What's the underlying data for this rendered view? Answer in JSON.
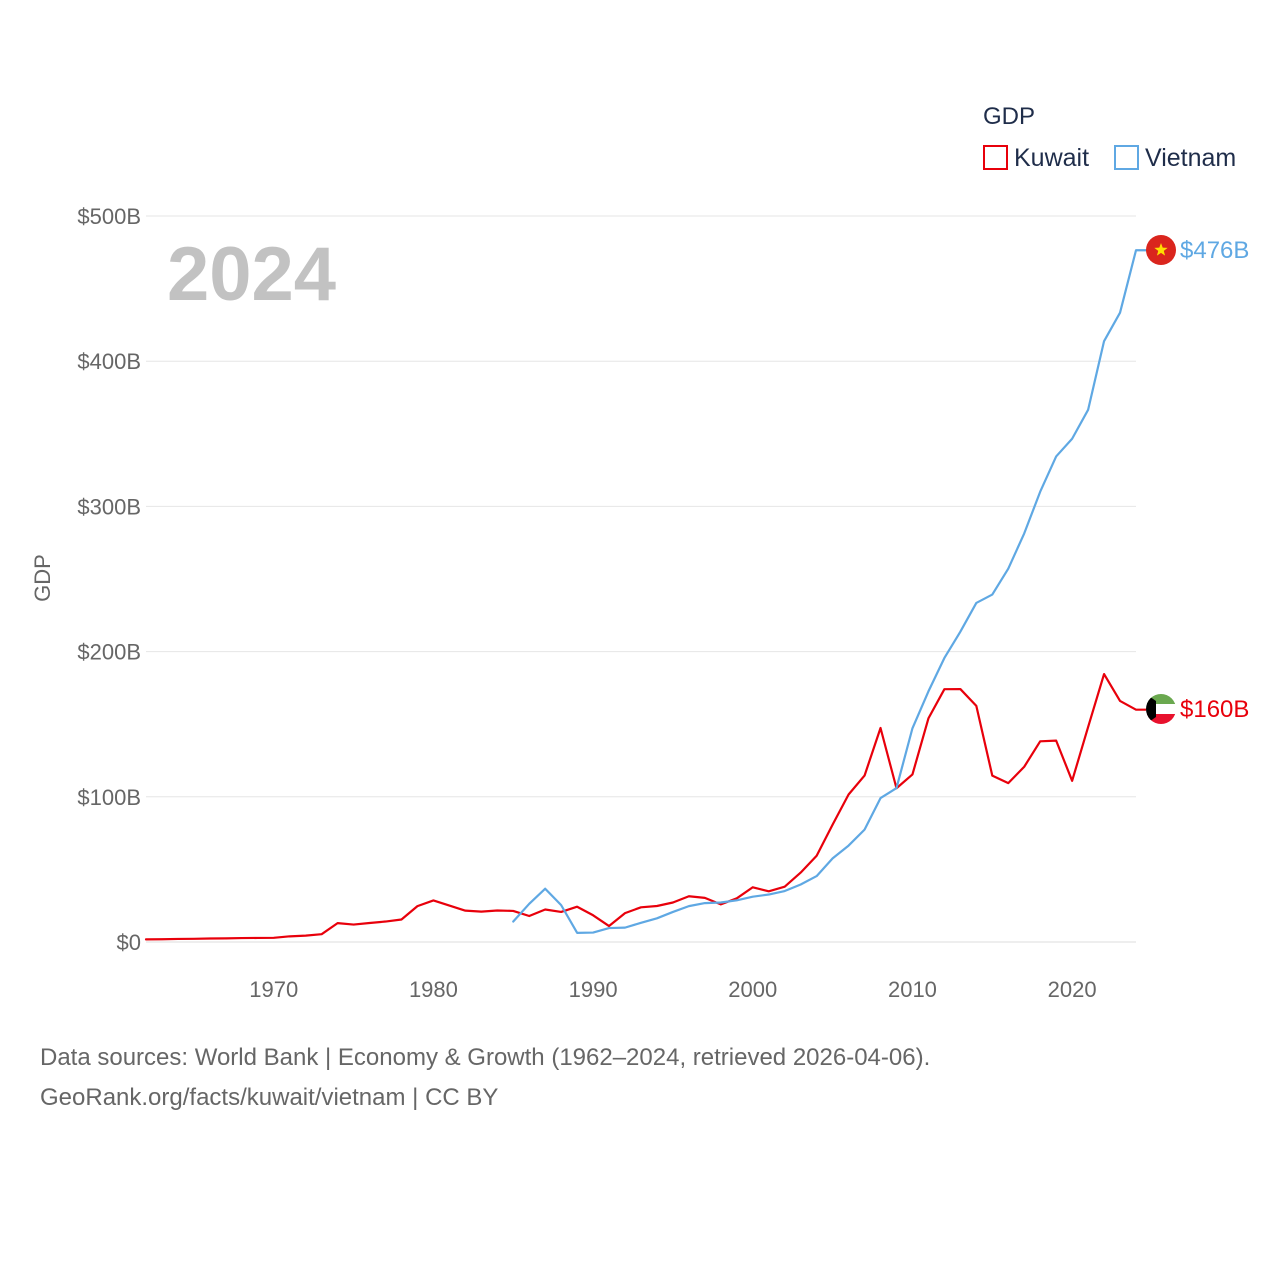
{
  "chart_data": {
    "type": "line",
    "title": "GDP",
    "year_label": "2024",
    "ylabel": "GDP",
    "xlabel": "",
    "xlim": [
      1962,
      2024
    ],
    "ylim": [
      0,
      500
    ],
    "x_ticks": [
      1970,
      1980,
      1990,
      2000,
      2010,
      2020
    ],
    "x_tick_labels": [
      "1970",
      "1980",
      "1990",
      "2000",
      "2010",
      "2020"
    ],
    "y_ticks": [
      0,
      100,
      200,
      300,
      400,
      500
    ],
    "y_tick_labels": [
      "$0",
      "$100B",
      "$200B",
      "$300B",
      "$400B",
      "$500B"
    ],
    "grid": true,
    "legend_position": "top-right",
    "legend_title": "GDP",
    "units": "billion USD",
    "series": [
      {
        "name": "Kuwait",
        "color": "#e8000b",
        "end_label": "$160B",
        "flag": "kuwait-flag",
        "x": [
          1962,
          1963,
          1964,
          1965,
          1966,
          1967,
          1968,
          1969,
          1970,
          1971,
          1972,
          1973,
          1974,
          1975,
          1976,
          1977,
          1978,
          1979,
          1980,
          1981,
          1982,
          1983,
          1984,
          1985,
          1986,
          1987,
          1988,
          1989,
          1990,
          1991,
          1992,
          1993,
          1994,
          1995,
          1996,
          1997,
          1998,
          1999,
          2000,
          2001,
          2002,
          2003,
          2004,
          2005,
          2006,
          2007,
          2008,
          2009,
          2010,
          2011,
          2012,
          2013,
          2014,
          2015,
          2016,
          2017,
          2018,
          2019,
          2020,
          2021,
          2022,
          2023,
          2024
        ],
        "values": [
          1.8,
          1.9,
          2.1,
          2.2,
          2.4,
          2.5,
          2.7,
          2.8,
          2.9,
          3.9,
          4.4,
          5.4,
          13.0,
          12.0,
          13.1,
          14.1,
          15.5,
          24.7,
          28.6,
          25.1,
          21.6,
          20.9,
          21.7,
          21.4,
          17.9,
          22.4,
          20.7,
          24.3,
          18.4,
          11.0,
          19.9,
          23.9,
          24.8,
          27.2,
          31.5,
          30.4,
          25.9,
          30.1,
          37.7,
          34.9,
          38.1,
          47.8,
          59.4,
          80.8,
          101.6,
          114.6,
          147.4,
          105.9,
          115.4,
          154.0,
          174.1,
          174.2,
          162.6,
          114.6,
          109.4,
          120.7,
          138.2,
          138.7,
          111.0,
          148.0,
          184.5,
          166.0,
          160.0
        ]
      },
      {
        "name": "Vietnam",
        "color": "#5fa8e3",
        "end_label": "$476B",
        "flag": "vietnam-flag",
        "x": [
          1985,
          1986,
          1987,
          1988,
          1989,
          1990,
          1991,
          1992,
          1993,
          1994,
          1995,
          1996,
          1997,
          1998,
          1999,
          2000,
          2001,
          2002,
          2003,
          2004,
          2005,
          2006,
          2007,
          2008,
          2009,
          2010,
          2011,
          2012,
          2013,
          2014,
          2015,
          2016,
          2017,
          2018,
          2019,
          2020,
          2021,
          2022,
          2023,
          2024
        ],
        "values": [
          14.1,
          26.3,
          36.7,
          25.4,
          6.3,
          6.5,
          9.6,
          9.9,
          13.2,
          16.3,
          20.7,
          24.7,
          26.8,
          27.2,
          28.7,
          31.2,
          32.7,
          35.1,
          39.6,
          45.4,
          57.6,
          66.4,
          77.4,
          99.1,
          106.0,
          147.2,
          172.6,
          195.6,
          213.7,
          233.5,
          239.3,
          257.1,
          281.4,
          310.1,
          334.4,
          346.6,
          366.5,
          413.8,
          433.4,
          476.4
        ]
      }
    ]
  },
  "footer": {
    "line1": "Data sources: World Bank | Economy & Growth (1962–2024, retrieved 2026-04-06).",
    "line2": "GeoRank.org/facts/kuwait/vietnam | CC BY"
  }
}
